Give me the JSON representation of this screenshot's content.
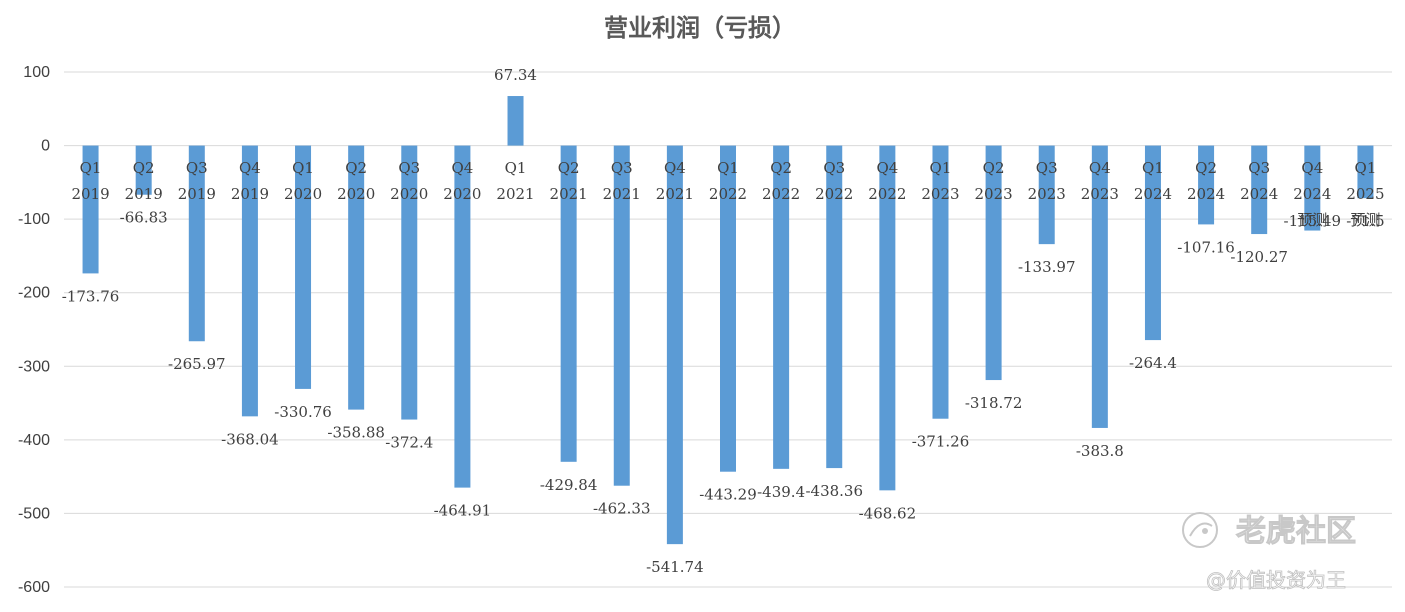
{
  "chart_data": {
    "type": "bar",
    "title": "营业利润（亏损）",
    "xlabel": "",
    "ylabel": "",
    "ylim": [
      -600,
      100
    ],
    "yticks": [
      100,
      0,
      -100,
      -200,
      -300,
      -400,
      -500,
      -600
    ],
    "grid": true,
    "categories": [
      [
        "Q1",
        "2019"
      ],
      [
        "Q2",
        "2019"
      ],
      [
        "Q3",
        "2019"
      ],
      [
        "Q4",
        "2019"
      ],
      [
        "Q1",
        "2020"
      ],
      [
        "Q2",
        "2020"
      ],
      [
        "Q3",
        "2020"
      ],
      [
        "Q4",
        "2020"
      ],
      [
        "Q1",
        "2021"
      ],
      [
        "Q2",
        "2021"
      ],
      [
        "Q3",
        "2021"
      ],
      [
        "Q4",
        "2021"
      ],
      [
        "Q1",
        "2022"
      ],
      [
        "Q2",
        "2022"
      ],
      [
        "Q3",
        "2022"
      ],
      [
        "Q4",
        "2022"
      ],
      [
        "Q1",
        "2023"
      ],
      [
        "Q2",
        "2023"
      ],
      [
        "Q3",
        "2023"
      ],
      [
        "Q4",
        "2023"
      ],
      [
        "Q1",
        "2024"
      ],
      [
        "Q2",
        "2024"
      ],
      [
        "Q3",
        "2024"
      ],
      [
        "Q4",
        "2024",
        "预测"
      ],
      [
        "Q1",
        "2025",
        "预测"
      ]
    ],
    "values": [
      -173.76,
      -66.83,
      -265.97,
      -368.04,
      -330.76,
      -358.88,
      -372.4,
      -464.91,
      67.34,
      -429.84,
      -462.33,
      -541.74,
      -443.29,
      -439.4,
      -438.36,
      -468.62,
      -371.26,
      -318.72,
      -133.97,
      -383.8,
      -264.4,
      -107.16,
      -120.27,
      -115.49,
      -71.5
    ],
    "data_labels": [
      "-173.76",
      "-66.83",
      "-265.97",
      "-368.04",
      "-330.76",
      "-358.88",
      "-372.4",
      "-464.91",
      "67.34",
      "-429.84",
      "-462.33",
      "-541.74",
      "-443.29",
      "-439.4",
      "-438.36",
      "-468.62",
      "-371.26",
      "-318.72",
      "-133.97",
      "-383.8",
      "-264.4",
      "-107.16",
      "-120.27",
      "-115.49",
      "-71.5"
    ],
    "colors": {
      "bar": "#5b9bd5",
      "grid": "#d9d9d9",
      "text": "#404040"
    }
  },
  "watermark": {
    "brand": "老虎社区",
    "author": "@价值投资为王"
  }
}
